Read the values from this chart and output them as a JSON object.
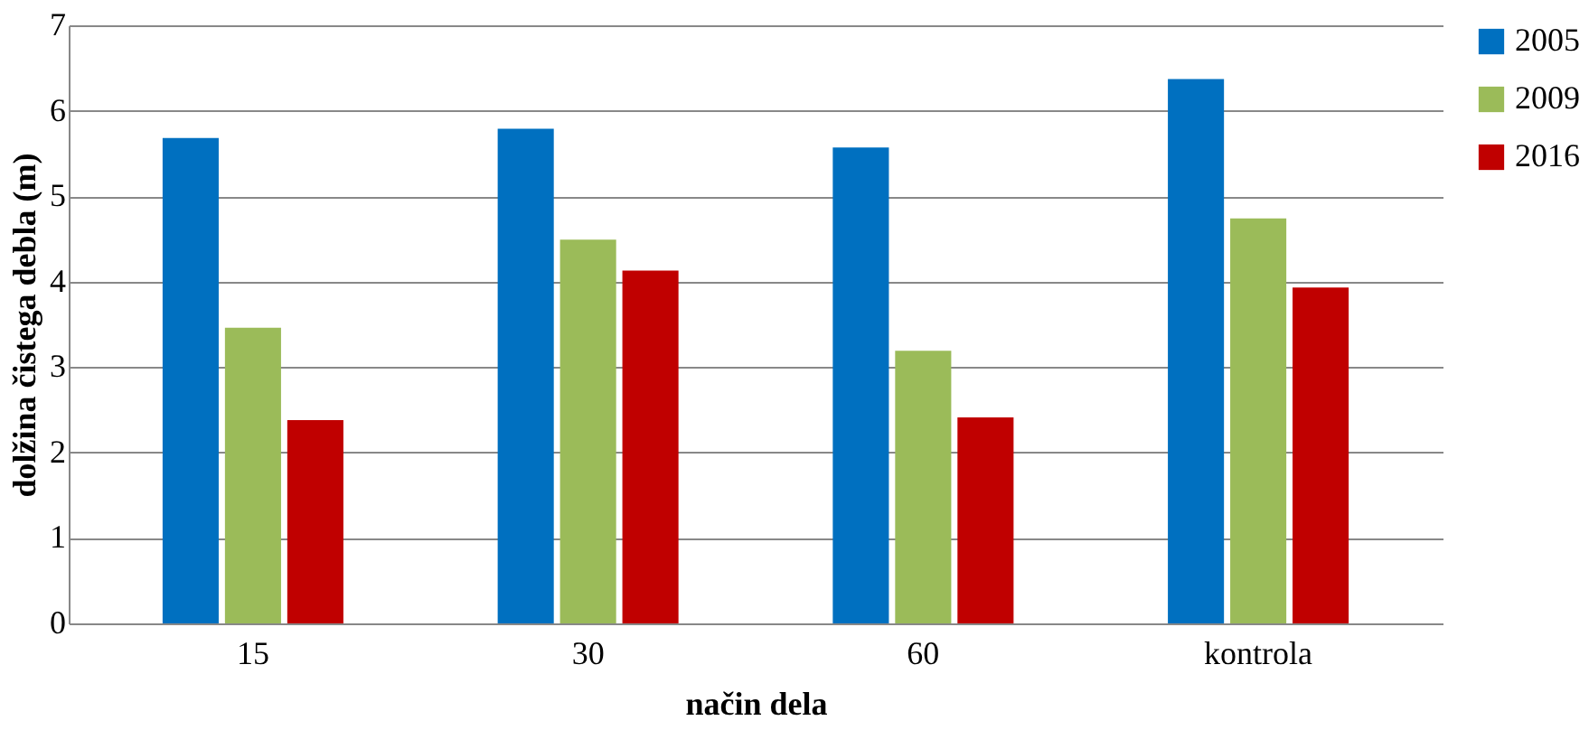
{
  "chart_data": {
    "type": "bar",
    "xlabel": "način dela",
    "ylabel": "dolžina čistega debla (m)",
    "categories": [
      "15",
      "30",
      "60",
      "kontrola"
    ],
    "series": [
      {
        "name": "2005",
        "color": "#0070c0",
        "values": [
          5.68,
          5.79,
          5.57,
          6.37
        ]
      },
      {
        "name": "2009",
        "color": "#9bbb59",
        "values": [
          3.46,
          4.49,
          3.19,
          4.74
        ]
      },
      {
        "name": "2016",
        "color": "#c00000",
        "values": [
          2.38,
          4.13,
          2.41,
          3.93
        ]
      }
    ],
    "ylim": [
      0,
      7
    ],
    "yticks": [
      0,
      1,
      2,
      3,
      4,
      5,
      6,
      7
    ],
    "grid": "y",
    "legend": "right"
  }
}
